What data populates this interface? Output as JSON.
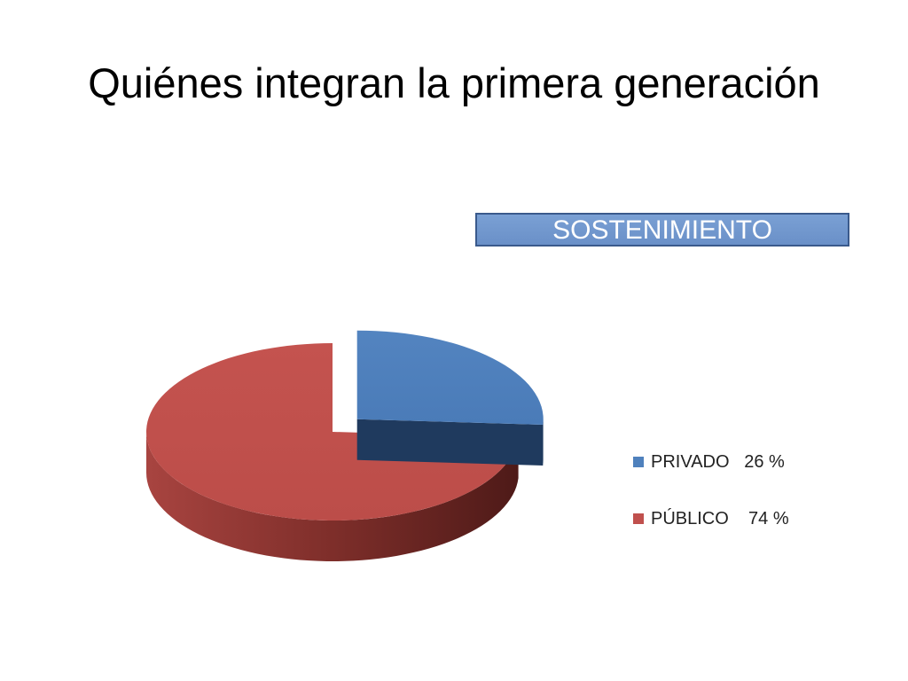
{
  "slide": {
    "title": "Quiénes integran la primera generación"
  },
  "chart_data": {
    "type": "pie",
    "title": "SOSTENIMIENTO",
    "categories": [
      "PRIVADO",
      "PÚBLICO"
    ],
    "values": [
      26,
      74
    ],
    "unit": "%",
    "legend_labels": [
      "PRIVADO   26 %",
      "PÚBLICO    74 %"
    ],
    "legend_position": "right",
    "colors": [
      "#4f81bd",
      "#c0504d"
    ],
    "dark_colors": [
      "#1f3a5e",
      "#7a2420"
    ],
    "exploded": true,
    "style": "3d"
  }
}
